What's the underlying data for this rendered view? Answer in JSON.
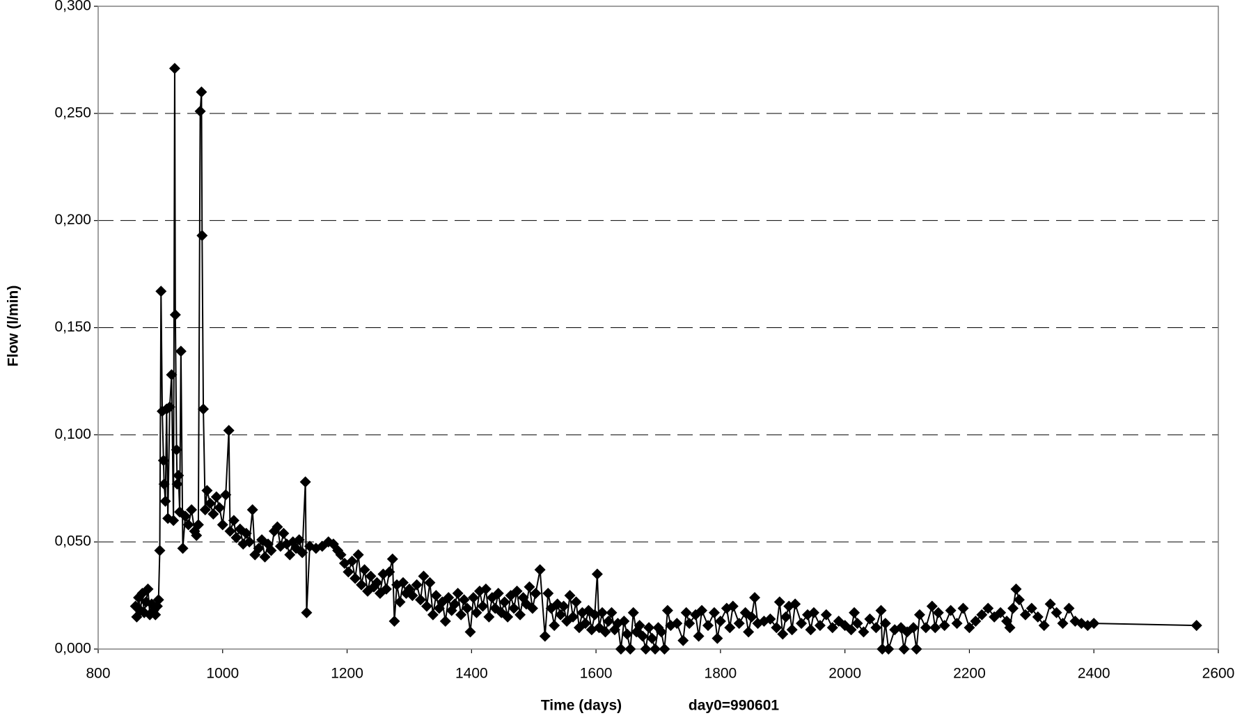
{
  "chart_data": {
    "type": "line",
    "marker": "diamond",
    "color": "#000000",
    "y_label": "Flow (l/min)",
    "x_label": "Time (days)",
    "x_note": "day0=990601",
    "xlim": [
      800,
      2600
    ],
    "xticks": [
      800,
      1000,
      1200,
      1400,
      1600,
      1800,
      2000,
      2200,
      2400,
      2600
    ],
    "ylim": [
      0,
      0.3
    ],
    "yticks": [
      {
        "value": 0,
        "label": "0,000"
      },
      {
        "value": 0.05,
        "label": "0,050"
      },
      {
        "value": 0.1,
        "label": "0,100"
      },
      {
        "value": 0.15,
        "label": "0,150"
      },
      {
        "value": 0.2,
        "label": "0,200"
      },
      {
        "value": 0.25,
        "label": "0,250"
      },
      {
        "value": 0.3,
        "label": "0,300"
      }
    ],
    "grid": true,
    "x": [
      860,
      862,
      865,
      868,
      871,
      874,
      877,
      880,
      883,
      886,
      889,
      892,
      895,
      897,
      899,
      901,
      903,
      905,
      906,
      908,
      910,
      912,
      915,
      918,
      921,
      923,
      924,
      926,
      927,
      929,
      931,
      933,
      936,
      940,
      945,
      950,
      955,
      958,
      961,
      964,
      966,
      967,
      969,
      972,
      975,
      980,
      985,
      990,
      995,
      1000,
      1005,
      1010,
      1012,
      1018,
      1022,
      1028,
      1033,
      1038,
      1043,
      1048,
      1052,
      1058,
      1063,
      1068,
      1073,
      1078,
      1083,
      1088,
      1093,
      1098,
      1103,
      1108,
      1113,
      1118,
      1123,
      1128,
      1133,
      1135,
      1140,
      1150,
      1160,
      1170,
      1178,
      1185,
      1190,
      1196,
      1202,
      1208,
      1213,
      1218,
      1223,
      1228,
      1233,
      1238,
      1243,
      1248,
      1253,
      1258,
      1263,
      1268,
      1273,
      1276,
      1280,
      1285,
      1290,
      1295,
      1300,
      1305,
      1312,
      1318,
      1323,
      1328,
      1333,
      1338,
      1343,
      1348,
      1353,
      1358,
      1363,
      1368,
      1373,
      1378,
      1383,
      1388,
      1393,
      1398,
      1403,
      1408,
      1413,
      1418,
      1423,
      1428,
      1433,
      1438,
      1443,
      1448,
      1453,
      1458,
      1463,
      1468,
      1473,
      1478,
      1483,
      1488,
      1493,
      1498,
      1503,
      1510,
      1518,
      1523,
      1528,
      1533,
      1538,
      1543,
      1548,
      1553,
      1558,
      1563,
      1568,
      1573,
      1578,
      1583,
      1588,
      1593,
      1598,
      1602,
      1605,
      1610,
      1615,
      1620,
      1625,
      1630,
      1635,
      1640,
      1645,
      1650,
      1655,
      1660,
      1665,
      1670,
      1675,
      1680,
      1685,
      1690,
      1695,
      1700,
      1705,
      1710,
      1715,
      1720,
      1730,
      1740,
      1745,
      1750,
      1760,
      1765,
      1770,
      1780,
      1790,
      1795,
      1800,
      1810,
      1815,
      1820,
      1830,
      1840,
      1845,
      1850,
      1855,
      1860,
      1870,
      1880,
      1890,
      1895,
      1900,
      1905,
      1910,
      1915,
      1920,
      1930,
      1940,
      1945,
      1950,
      1960,
      1970,
      1980,
      1990,
      2000,
      2010,
      2015,
      2020,
      2030,
      2040,
      2050,
      2058,
      2060,
      2065,
      2070,
      2080,
      2090,
      2095,
      2100,
      2110,
      2115,
      2120,
      2130,
      2140,
      2145,
      2150,
      2160,
      2170,
      2180,
      2190,
      2200,
      2210,
      2220,
      2230,
      2240,
      2250,
      2260,
      2265,
      2270,
      2275,
      2280,
      2290,
      2300,
      2310,
      2320,
      2330,
      2340,
      2350,
      2360,
      2370,
      2380,
      2390,
      2400,
      2565
    ],
    "values": [
      0.02,
      0.015,
      0.024,
      0.018,
      0.026,
      0.017,
      0.022,
      0.028,
      0.016,
      0.021,
      0.018,
      0.016,
      0.02,
      0.023,
      0.046,
      0.167,
      0.111,
      0.088,
      0.077,
      0.069,
      0.112,
      0.061,
      0.113,
      0.128,
      0.06,
      0.271,
      0.156,
      0.093,
      0.077,
      0.081,
      0.064,
      0.139,
      0.047,
      0.062,
      0.058,
      0.065,
      0.055,
      0.053,
      0.058,
      0.251,
      0.26,
      0.193,
      0.112,
      0.065,
      0.074,
      0.068,
      0.063,
      0.071,
      0.066,
      0.058,
      0.072,
      0.102,
      0.055,
      0.06,
      0.052,
      0.056,
      0.049,
      0.054,
      0.05,
      0.065,
      0.044,
      0.047,
      0.051,
      0.043,
      0.049,
      0.046,
      0.055,
      0.057,
      0.048,
      0.054,
      0.049,
      0.044,
      0.05,
      0.047,
      0.051,
      0.045,
      0.078,
      0.017,
      0.048,
      0.047,
      0.048,
      0.05,
      0.049,
      0.046,
      0.044,
      0.04,
      0.036,
      0.041,
      0.033,
      0.044,
      0.03,
      0.037,
      0.027,
      0.034,
      0.029,
      0.031,
      0.026,
      0.035,
      0.028,
      0.036,
      0.042,
      0.013,
      0.03,
      0.022,
      0.031,
      0.026,
      0.028,
      0.025,
      0.03,
      0.023,
      0.034,
      0.02,
      0.031,
      0.016,
      0.025,
      0.019,
      0.022,
      0.013,
      0.024,
      0.018,
      0.021,
      0.026,
      0.016,
      0.023,
      0.019,
      0.008,
      0.024,
      0.017,
      0.027,
      0.02,
      0.028,
      0.015,
      0.024,
      0.019,
      0.026,
      0.017,
      0.022,
      0.015,
      0.025,
      0.019,
      0.027,
      0.016,
      0.024,
      0.021,
      0.029,
      0.019,
      0.026,
      0.037,
      0.006,
      0.026,
      0.019,
      0.011,
      0.021,
      0.016,
      0.02,
      0.013,
      0.025,
      0.015,
      0.022,
      0.01,
      0.017,
      0.012,
      0.018,
      0.009,
      0.016,
      0.035,
      0.01,
      0.017,
      0.008,
      0.013,
      0.017,
      0.009,
      0.012,
      0.0,
      0.013,
      0.007,
      0.0,
      0.017,
      0.008,
      0.011,
      0.006,
      0.0,
      0.01,
      0.005,
      0.0,
      0.01,
      0.008,
      0.0,
      0.018,
      0.011,
      0.012,
      0.004,
      0.017,
      0.012,
      0.016,
      0.006,
      0.018,
      0.011,
      0.017,
      0.005,
      0.013,
      0.019,
      0.01,
      0.02,
      0.012,
      0.017,
      0.008,
      0.015,
      0.024,
      0.012,
      0.013,
      0.014,
      0.01,
      0.022,
      0.007,
      0.015,
      0.02,
      0.009,
      0.021,
      0.012,
      0.016,
      0.009,
      0.017,
      0.011,
      0.016,
      0.01,
      0.013,
      0.011,
      0.009,
      0.017,
      0.012,
      0.008,
      0.014,
      0.01,
      0.018,
      0.0,
      0.012,
      0.0,
      0.009,
      0.01,
      0.0,
      0.008,
      0.01,
      0.0,
      0.016,
      0.01,
      0.02,
      0.01,
      0.017,
      0.011,
      0.018,
      0.012,
      0.019,
      0.01,
      0.013,
      0.016,
      0.019,
      0.015,
      0.017,
      0.013,
      0.01,
      0.019,
      0.028,
      0.023,
      0.016,
      0.019,
      0.015,
      0.011,
      0.021,
      0.017,
      0.012,
      0.019,
      0.013,
      0.012,
      0.011,
      0.012,
      0.011
    ]
  }
}
